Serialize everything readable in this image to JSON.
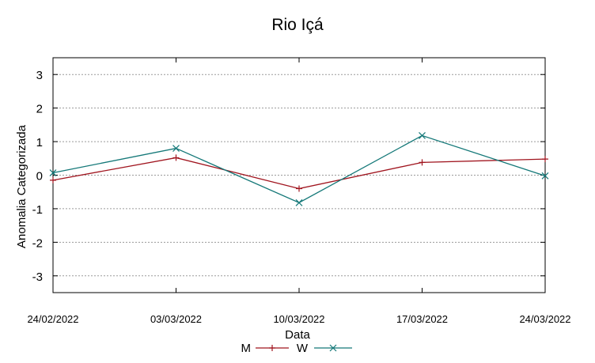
{
  "chart_data": {
    "type": "line",
    "title": "Rio Içá",
    "xlabel": "Data",
    "ylabel": "Anomalia Categorizada",
    "categories": [
      "24/02/2022",
      "03/03/2022",
      "10/03/2022",
      "17/03/2022",
      "24/03/2022"
    ],
    "ylim": [
      -3.5,
      3.5
    ],
    "yticks": [
      "3",
      "2",
      "1",
      "0",
      "-1",
      "-2",
      "-3"
    ],
    "ytick_values": [
      3,
      2,
      1,
      0,
      -1,
      -2,
      -3
    ],
    "grid": true,
    "legend_position": "bottom-center",
    "series": [
      {
        "name": "M",
        "color": "#a0141e",
        "marker": "plus",
        "values": [
          -0.15,
          0.52,
          -0.4,
          0.38,
          0.48
        ]
      },
      {
        "name": "W",
        "color": "#147878",
        "marker": "cross",
        "values": [
          0.07,
          0.8,
          -0.82,
          1.18,
          -0.02
        ]
      }
    ]
  }
}
